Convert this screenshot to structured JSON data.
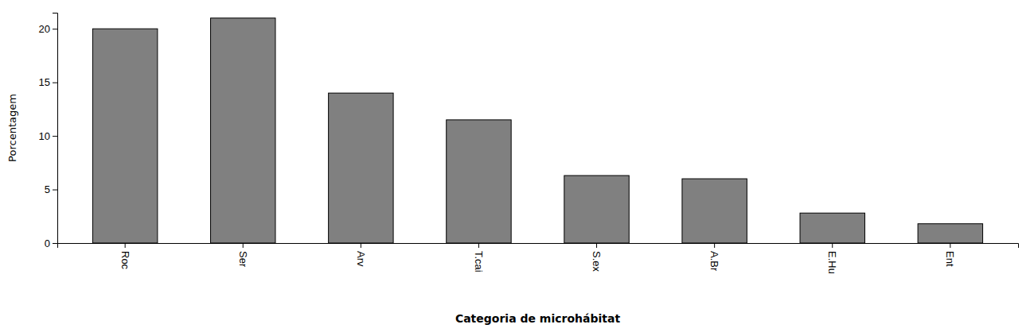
{
  "chart_data": {
    "type": "bar",
    "categories": [
      "Roc",
      "Ser",
      "Arv",
      "T.cai",
      "S.ex",
      "A.Br",
      "E.Hu",
      "Ent"
    ],
    "values": [
      20.0,
      21.0,
      14.0,
      11.5,
      6.3,
      6.0,
      2.8,
      1.8
    ],
    "color": "#808080",
    "xlabel": "Categoria de microhábitat",
    "ylabel": "Porcentagem",
    "ylim": [
      0,
      21.5
    ],
    "yticks": [
      0,
      5,
      10,
      15,
      20
    ]
  }
}
